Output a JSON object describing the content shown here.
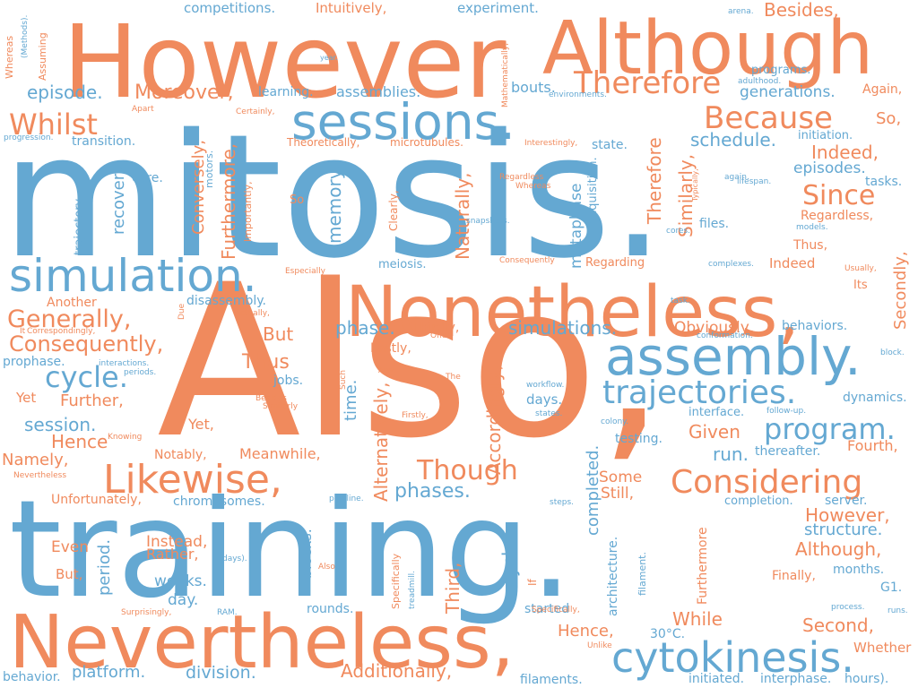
{
  "palette": {
    "orange": "#f08a5d",
    "blue": "#64a8d2"
  },
  "words": [
    {
      "text": "Also,",
      "color": "orange"
    },
    {
      "text": "mitosis.",
      "color": "blue"
    },
    {
      "text": "training.",
      "color": "blue"
    },
    {
      "text": "However",
      "color": "orange"
    },
    {
      "text": "Although",
      "color": "orange"
    },
    {
      "text": "Nevertheless,",
      "color": "orange"
    },
    {
      "text": "Nonetheless,",
      "color": "orange"
    },
    {
      "text": "sessions.",
      "color": "blue"
    },
    {
      "text": "assembly.",
      "color": "blue"
    },
    {
      "text": "simulation.",
      "color": "blue"
    },
    {
      "text": "cytokinesis.",
      "color": "blue"
    },
    {
      "text": "trajectories.",
      "color": "blue"
    },
    {
      "text": "Likewise,",
      "color": "orange"
    },
    {
      "text": "Considering",
      "color": "orange"
    },
    {
      "text": "Therefore",
      "color": "orange"
    },
    {
      "text": "Because",
      "color": "orange"
    },
    {
      "text": "program.",
      "color": "blue"
    },
    {
      "text": "Whilst",
      "color": "orange"
    },
    {
      "text": "Generally,",
      "color": "orange"
    },
    {
      "text": "Consequently,",
      "color": "orange"
    },
    {
      "text": "Since",
      "color": "orange"
    },
    {
      "text": "Though",
      "color": "orange"
    },
    {
      "text": "cycle.",
      "color": "blue"
    },
    {
      "text": "phases.",
      "color": "blue"
    },
    {
      "text": "Moreover,",
      "color": "orange"
    },
    {
      "text": "episode.",
      "color": "blue"
    },
    {
      "text": "schedule.",
      "color": "blue"
    },
    {
      "text": "Indeed,",
      "color": "orange"
    },
    {
      "text": "episodes.",
      "color": "blue"
    },
    {
      "text": "Besides,",
      "color": "orange"
    },
    {
      "text": "assemblies.",
      "color": "blue"
    },
    {
      "text": "generations.",
      "color": "blue"
    },
    {
      "text": "competitions.",
      "color": "blue"
    },
    {
      "text": "Intuitively,",
      "color": "orange"
    },
    {
      "text": "experiment.",
      "color": "blue"
    },
    {
      "text": "learning.",
      "color": "blue"
    },
    {
      "text": "bouts.",
      "color": "blue"
    },
    {
      "text": "So,",
      "color": "orange"
    },
    {
      "text": "Again,",
      "color": "orange"
    },
    {
      "text": "programs.",
      "color": "blue"
    },
    {
      "text": "transition.",
      "color": "blue"
    },
    {
      "text": "core.",
      "color": "blue"
    },
    {
      "text": "Theoretically,",
      "color": "orange"
    },
    {
      "text": "microtubules.",
      "color": "orange"
    },
    {
      "text": "state.",
      "color": "blue"
    },
    {
      "text": "initiation.",
      "color": "blue"
    },
    {
      "text": "tasks.",
      "color": "blue"
    },
    {
      "text": "Regardless,",
      "color": "orange"
    },
    {
      "text": "files.",
      "color": "blue"
    },
    {
      "text": "Thus,",
      "color": "orange"
    },
    {
      "text": "Indeed",
      "color": "orange"
    },
    {
      "text": "Regarding",
      "color": "orange"
    },
    {
      "text": "meiosis.",
      "color": "blue"
    },
    {
      "text": "disassembly.",
      "color": "blue"
    },
    {
      "text": "Another",
      "color": "orange"
    },
    {
      "text": "phase.",
      "color": "blue"
    },
    {
      "text": "simulations.",
      "color": "blue"
    },
    {
      "text": "Obviously,",
      "color": "orange"
    },
    {
      "text": "behaviors.",
      "color": "blue"
    },
    {
      "text": "Thirdly,",
      "color": "orange"
    },
    {
      "text": "Lastly,",
      "color": "orange"
    },
    {
      "text": "But",
      "color": "orange"
    },
    {
      "text": "Thus",
      "color": "orange"
    },
    {
      "text": "prophase.",
      "color": "blue"
    },
    {
      "text": "jobs.",
      "color": "blue"
    },
    {
      "text": "Further,",
      "color": "orange"
    },
    {
      "text": "Yet",
      "color": "orange"
    },
    {
      "text": "Yet,",
      "color": "orange"
    },
    {
      "text": "session.",
      "color": "blue"
    },
    {
      "text": "Hence",
      "color": "orange"
    },
    {
      "text": "Namely,",
      "color": "orange"
    },
    {
      "text": "Notably,",
      "color": "orange"
    },
    {
      "text": "Meanwhile,",
      "color": "orange"
    },
    {
      "text": "Given",
      "color": "orange"
    },
    {
      "text": "run.",
      "color": "blue"
    },
    {
      "text": "thereafter.",
      "color": "blue"
    },
    {
      "text": "Fourth,",
      "color": "orange"
    },
    {
      "text": "testing.",
      "color": "blue"
    },
    {
      "text": "days.",
      "color": "blue"
    },
    {
      "text": "interface.",
      "color": "blue"
    },
    {
      "text": "dynamics.",
      "color": "blue"
    },
    {
      "text": "Some",
      "color": "orange"
    },
    {
      "text": "Still,",
      "color": "orange"
    },
    {
      "text": "chromosomes.",
      "color": "blue"
    },
    {
      "text": "Unfortunately,",
      "color": "orange"
    },
    {
      "text": "Even",
      "color": "orange"
    },
    {
      "text": "Instead,",
      "color": "orange"
    },
    {
      "text": "Rather,",
      "color": "orange"
    },
    {
      "text": "But,",
      "color": "orange"
    },
    {
      "text": "weeks.",
      "color": "blue"
    },
    {
      "text": "day.",
      "color": "blue"
    },
    {
      "text": "rounds.",
      "color": "blue"
    },
    {
      "text": "completion.",
      "color": "blue"
    },
    {
      "text": "server.",
      "color": "blue"
    },
    {
      "text": "However,",
      "color": "orange"
    },
    {
      "text": "structure.",
      "color": "blue"
    },
    {
      "text": "Although,",
      "color": "orange"
    },
    {
      "text": "months.",
      "color": "blue"
    },
    {
      "text": "Finally,",
      "color": "orange"
    },
    {
      "text": "G1.",
      "color": "blue"
    },
    {
      "text": "Hence,",
      "color": "orange"
    },
    {
      "text": "While",
      "color": "orange"
    },
    {
      "text": "Second,",
      "color": "orange"
    },
    {
      "text": "30°C.",
      "color": "blue"
    },
    {
      "text": "Whether",
      "color": "orange"
    },
    {
      "text": "Additionally,",
      "color": "orange"
    },
    {
      "text": "platform.",
      "color": "blue"
    },
    {
      "text": "division.",
      "color": "blue"
    },
    {
      "text": "filaments.",
      "color": "blue"
    },
    {
      "text": "initiated.",
      "color": "blue"
    },
    {
      "text": "interphase.",
      "color": "blue"
    },
    {
      "text": "hours).",
      "color": "blue"
    },
    {
      "text": "behavior.",
      "color": "blue"
    },
    {
      "text": "Furthermore,",
      "color": "orange"
    },
    {
      "text": "Conversely,",
      "color": "orange"
    },
    {
      "text": "recovery.",
      "color": "blue"
    },
    {
      "text": "memory.",
      "color": "blue"
    },
    {
      "text": "Similarly,",
      "color": "orange"
    },
    {
      "text": "Therefore",
      "color": "orange"
    },
    {
      "text": "metaphase",
      "color": "blue"
    },
    {
      "text": "acquisition.",
      "color": "blue"
    },
    {
      "text": "Naturally,",
      "color": "orange"
    },
    {
      "text": "Secondly,",
      "color": "orange"
    },
    {
      "text": "time.",
      "color": "blue"
    },
    {
      "text": "Alternatively,",
      "color": "orange"
    },
    {
      "text": "Accordingly,",
      "color": "orange"
    },
    {
      "text": "completed.",
      "color": "blue"
    },
    {
      "text": "cycles.",
      "color": "blue"
    },
    {
      "text": "period.",
      "color": "blue"
    },
    {
      "text": "blocks.",
      "color": "blue"
    },
    {
      "text": "Third,",
      "color": "orange"
    },
    {
      "text": "architecture.",
      "color": "blue"
    },
    {
      "text": "Furthermore",
      "color": "orange"
    },
    {
      "text": "started",
      "color": "blue"
    },
    {
      "text": "filament.",
      "color": "blue"
    },
    {
      "text": "trajectory.",
      "color": "blue"
    },
    {
      "text": "motors.",
      "color": "blue"
    },
    {
      "text": "Importantly,",
      "color": "orange"
    },
    {
      "text": "Clearly,",
      "color": "orange"
    },
    {
      "text": "If",
      "color": "orange"
    },
    {
      "text": "Specifically",
      "color": "orange"
    },
    {
      "text": "Whereas",
      "color": "orange"
    },
    {
      "text": "Assuming",
      "color": "orange"
    },
    {
      "text": "(Methods).",
      "color": "blue"
    },
    {
      "text": "Mathematically,",
      "color": "orange"
    },
    {
      "text": "Typically,",
      "color": "orange"
    },
    {
      "text": "year.",
      "color": "blue"
    },
    {
      "text": "arena.",
      "color": "blue"
    },
    {
      "text": "adulthood.",
      "color": "blue"
    },
    {
      "text": "environments.",
      "color": "blue"
    },
    {
      "text": "Apart",
      "color": "orange"
    },
    {
      "text": "Certainly,",
      "color": "orange"
    },
    {
      "text": "progression.",
      "color": "blue"
    },
    {
      "text": "Interestingly,",
      "color": "orange"
    },
    {
      "text": "Regardless",
      "color": "orange"
    },
    {
      "text": "Whereas",
      "color": "orange"
    },
    {
      "text": "again.",
      "color": "blue"
    },
    {
      "text": "lifespan.",
      "color": "blue"
    },
    {
      "text": "So",
      "color": "orange"
    },
    {
      "text": "snapshots.",
      "color": "blue"
    },
    {
      "text": "cores.",
      "color": "blue"
    },
    {
      "text": "models.",
      "color": "blue"
    },
    {
      "text": "Consequently",
      "color": "orange"
    },
    {
      "text": "complexes.",
      "color": "blue"
    },
    {
      "text": "Especially",
      "color": "orange"
    },
    {
      "text": "Usually,",
      "color": "orange"
    },
    {
      "text": "Its",
      "color": "orange"
    },
    {
      "text": "task.",
      "color": "blue"
    },
    {
      "text": "Actually,",
      "color": "orange"
    },
    {
      "text": "Due",
      "color": "orange"
    },
    {
      "text": "It",
      "color": "orange"
    },
    {
      "text": "Correspondingly,",
      "color": "orange"
    },
    {
      "text": "One",
      "color": "orange"
    },
    {
      "text": "conformation.",
      "color": "blue"
    },
    {
      "text": "block.",
      "color": "blue"
    },
    {
      "text": "interactions.",
      "color": "blue"
    },
    {
      "text": "periods.",
      "color": "blue"
    },
    {
      "text": "Any",
      "color": "orange"
    },
    {
      "text": "Such",
      "color": "orange"
    },
    {
      "text": "The",
      "color": "orange"
    },
    {
      "text": "workflow.",
      "color": "blue"
    },
    {
      "text": "follow-up.",
      "color": "blue"
    },
    {
      "text": "Besides",
      "color": "orange"
    },
    {
      "text": "Similarly",
      "color": "orange"
    },
    {
      "text": "states.",
      "color": "blue"
    },
    {
      "text": "Firstly,",
      "color": "orange"
    },
    {
      "text": "colony.",
      "color": "blue"
    },
    {
      "text": "Knowing",
      "color": "orange"
    },
    {
      "text": "Nevertheless",
      "color": "orange"
    },
    {
      "text": "pipeline.",
      "color": "blue"
    },
    {
      "text": "steps.",
      "color": "blue"
    },
    {
      "text": "days).",
      "color": "blue"
    },
    {
      "text": "Also",
      "color": "orange"
    },
    {
      "text": "treadmill.",
      "color": "blue"
    },
    {
      "text": "Surprisingly,",
      "color": "orange"
    },
    {
      "text": "RAM.",
      "color": "blue"
    },
    {
      "text": "Specifically,",
      "color": "orange"
    },
    {
      "text": "Unlike",
      "color": "orange"
    },
    {
      "text": "process.",
      "color": "blue"
    },
    {
      "text": "runs.",
      "color": "blue"
    }
  ]
}
